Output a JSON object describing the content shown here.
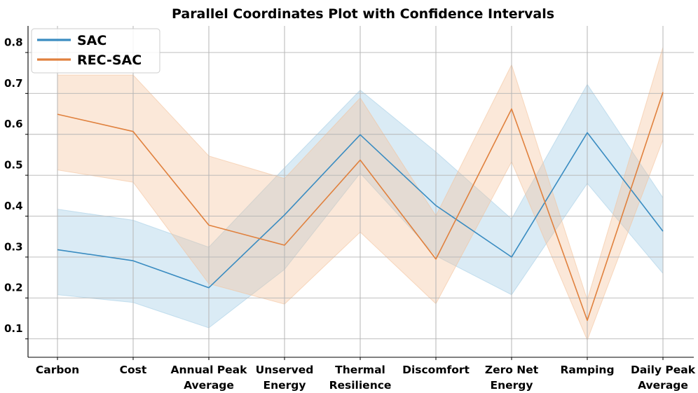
{
  "chart_data": {
    "type": "parallel-coordinates",
    "title": "Parallel Coordinates Plot with Confidence Intervals",
    "axes": [
      [
        "Carbon"
      ],
      [
        "Cost"
      ],
      [
        "Annual Peak",
        "Average"
      ],
      [
        "Unserved",
        "Energy"
      ],
      [
        "Thermal",
        "Resilience"
      ],
      [
        "Discomfort"
      ],
      [
        "Zero Net",
        "Energy"
      ],
      [
        "Ramping"
      ],
      [
        "Daily Peak",
        "Average"
      ]
    ],
    "yticks": [
      "0.1",
      "0.2",
      "0.3",
      "0.4",
      "0.5",
      "0.6",
      "0.7",
      "0.8"
    ],
    "ylim": [
      0.03,
      0.84
    ],
    "series": [
      {
        "name": "SAC",
        "color": "#3a8cc1",
        "band_color": "#a6cfe6",
        "mean": [
          0.293,
          0.266,
          0.2,
          0.378,
          0.574,
          0.401,
          0.275,
          0.579,
          0.338
        ],
        "lower": [
          0.183,
          0.164,
          0.102,
          0.245,
          0.48,
          0.278,
          0.183,
          0.455,
          0.235
        ],
        "upper": [
          0.392,
          0.365,
          0.299,
          0.493,
          0.683,
          0.532,
          0.368,
          0.697,
          0.42
        ]
      },
      {
        "name": "REC-SAC",
        "color": "#e0813e",
        "band_color": "#f4c39c",
        "mean": [
          0.624,
          0.582,
          0.353,
          0.304,
          0.512,
          0.27,
          0.637,
          0.12,
          0.678
        ],
        "lower": [
          0.488,
          0.458,
          0.21,
          0.16,
          0.336,
          0.161,
          0.508,
          0.072,
          0.562
        ],
        "upper": [
          0.72,
          0.72,
          0.522,
          0.467,
          0.664,
          0.376,
          0.745,
          0.17,
          0.788
        ]
      }
    ],
    "legend": {
      "position": "top-left",
      "entries": [
        "SAC",
        "REC-SAC"
      ]
    },
    "grid": true
  }
}
